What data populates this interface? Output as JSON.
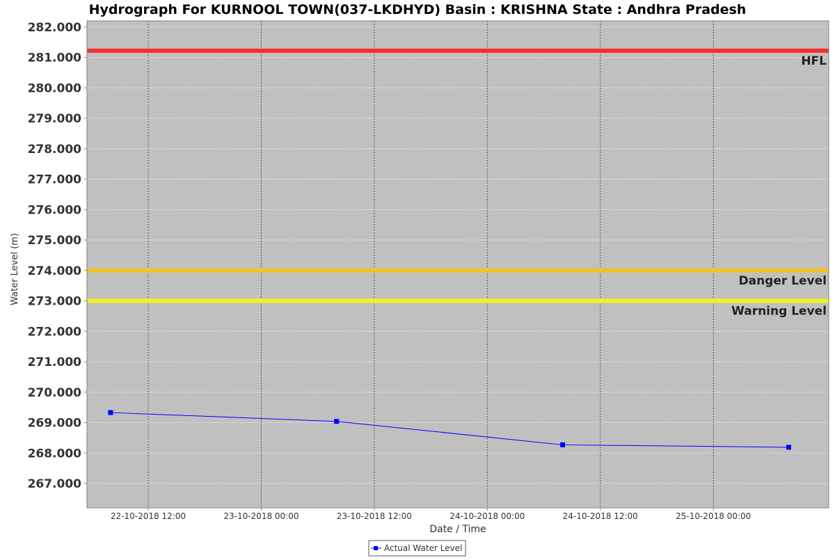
{
  "chart_data": {
    "type": "line",
    "title": "Hydrograph For KURNOOL TOWN(037-LKDHYD) Basin : KRISHNA State : Andhra Pradesh",
    "xlabel": "Date / Time",
    "ylabel": "Water Level (m)",
    "ylim": [
      266.2,
      282.2
    ],
    "xlim": [
      "2018-10-22 05:30",
      "2018-10-25 12:15"
    ],
    "yticks": [
      "267.000",
      "268.000",
      "269.000",
      "270.000",
      "271.000",
      "272.000",
      "273.000",
      "274.000",
      "275.000",
      "276.000",
      "277.000",
      "278.000",
      "279.000",
      "280.000",
      "281.000",
      "282.000"
    ],
    "xticks": [
      {
        "t": "2018-10-22 12:00",
        "label": "22-10-2018 12:00"
      },
      {
        "t": "2018-10-23 00:00",
        "label": "23-10-2018 00:00"
      },
      {
        "t": "2018-10-23 12:00",
        "label": "23-10-2018 12:00"
      },
      {
        "t": "2018-10-24 00:00",
        "label": "24-10-2018 00:00"
      },
      {
        "t": "2018-10-24 12:00",
        "label": "24-10-2018 12:00"
      },
      {
        "t": "2018-10-25 00:00",
        "label": "25-10-2018 00:00"
      }
    ],
    "grid": true,
    "legend_position": "bottom-center",
    "reference_lines": [
      {
        "name": "HFL",
        "value": 281.22,
        "color": "#f52d2d"
      },
      {
        "name": "Danger Level",
        "value": 274.0,
        "color": "#f2c21e"
      },
      {
        "name": "Warning Level",
        "value": 273.0,
        "color": "#f2f21e"
      }
    ],
    "series": [
      {
        "name": "Actual Water Level",
        "color": "#0000ff",
        "x": [
          "2018-10-22 08:00",
          "2018-10-23 08:00",
          "2018-10-24 08:00",
          "2018-10-25 08:00"
        ],
        "values": [
          269.33,
          269.04,
          268.27,
          268.19
        ]
      }
    ]
  },
  "colors": {
    "plot_background": "#c0c0c0",
    "gridline": "#e8e8e8",
    "series_line": "#0000ff"
  }
}
